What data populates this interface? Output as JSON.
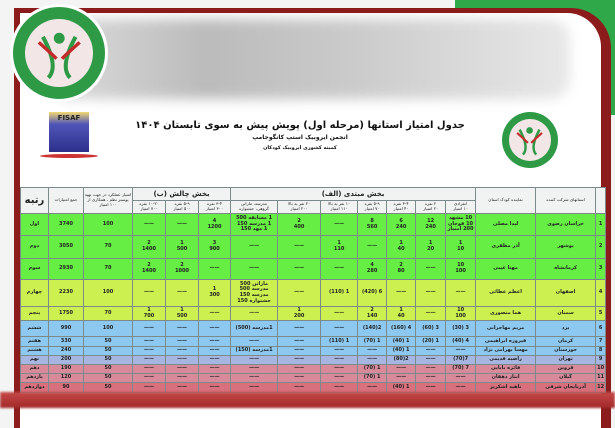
{
  "header": {
    "title": "جدول امتیاز استانها (مرحله اول) پویش پیش به سوی تابستان ۱۴۰۴",
    "subtitle": "انجمن ایروبیک استپ کانگوجامپ",
    "committee": "کمیته کشوری ایروبیک کودکان",
    "fisaf_logo_text": "FISAF"
  },
  "colors": {
    "frame": "#8c1c1c",
    "corner_green": "#2fa84a",
    "row_green": "#66ee44",
    "row_yellow": "#ccf050",
    "row_blue": "#8cc8f0",
    "row_pink": "#d88a9a"
  },
  "table": {
    "col_province": "استانهای شرکت کننده",
    "col_rep": "نماینده کودک استان",
    "group_a": "بخش مبتدی (الف)",
    "group_b": "بخش چالش (ب)",
    "col_a": [
      "انفرادی\n۱۰ امتیاز",
      "۲ نفره\n۲۰ امتیاز",
      "۳-۴ نفره\n۴۰ امتیاز",
      "۵-۹ نفره\n۷۰ امتیاز",
      "۱۰ نفر به بالا\n۱۱۰ امتیاز",
      "۲۰ نفر به بالا\n۲۰۰ امتیاز",
      "مدرسه، ماراتن\nگروهی، جشنواره"
    ],
    "col_b": [
      "۳-۴ نفره\n۳۰۰ امتیاز",
      "۵-۹ نفره\n۵۰۰ امتیاز",
      "۱۰-۲۰ نفره\n۷۰۰ امتیاز"
    ],
    "col_perf": "امتیاز عملکرد در جهت تهیه پوستر نظم ، همکاری از ۱۰۰ امتیاز",
    "col_total": "جمع امتیازات",
    "col_rank": "رتبه",
    "rows": [
      {
        "n": "1",
        "prov": "خراسان رضوی",
        "rep": "لیدا مصلی",
        "a": [
          "10 مشهد\n10 قوچان\n200 امتیاز",
          "12\n240",
          "6\n240",
          "8\n560",
          "——",
          "2\n400",
          "1 مسابقه  500\n1 مدرسه  150\n1 مهد  150"
        ],
        "b": [
          "4\n1200",
          "——",
          "——"
        ],
        "perf": "100",
        "total": "3740",
        "rank": "اول",
        "color": "green"
      },
      {
        "n": "2",
        "prov": "بوشهر",
        "rep": "آذر مظفری",
        "a": [
          "1\n10",
          "1\n20",
          "1\n40",
          "——",
          "1\n110",
          "——",
          "——"
        ],
        "b": [
          "3\n900",
          "1\n500",
          "2\n1400"
        ],
        "perf": "70",
        "total": "3050",
        "rank": "دوم",
        "color": "green"
      },
      {
        "n": "3",
        "prov": "کرمانشاه",
        "rep": "مهتا غیبی",
        "a": [
          "10\n100",
          "——",
          "2\n80",
          "4\n280",
          "——",
          "——",
          "——"
        ],
        "b": [
          "——",
          "2\n1000",
          "2\n1400"
        ],
        "perf": "70",
        "total": "2930",
        "rank": "سوم",
        "color": "green"
      },
      {
        "n": "4",
        "prov": "اصفهان",
        "rep": "اعظم عطائی",
        "a": [
          "——",
          "——",
          "——",
          "6 (420)",
          "1 (110)",
          "——",
          "ماراتن  500\nمدرسه  500\nمدرسه  150\nجشنواره  150"
        ],
        "b": [
          "1\n300",
          "——",
          "——"
        ],
        "perf": "100",
        "total": "2230",
        "rank": "چهارم",
        "color": "yellow"
      },
      {
        "n": "5",
        "prov": "سمنان",
        "rep": "هما منصوری",
        "a": [
          "10\n100",
          "——",
          "1\n40",
          "2\n140",
          "——",
          "1\n200",
          "——"
        ],
        "b": [
          "——",
          "1\n500",
          "1\n700"
        ],
        "perf": "70",
        "total": "1750",
        "rank": "پنجم",
        "color": "yellow"
      },
      {
        "n": "6",
        "prov": "یزد",
        "rep": "مریم مهاجرانی",
        "a": [
          "3 (30)",
          "3 (60)",
          "4 (160)",
          "2(140)",
          "——",
          "——",
          "1مدرسه (500)"
        ],
        "b": [
          "——",
          "——",
          "——"
        ],
        "perf": "100",
        "total": "990",
        "rank": "ششم",
        "color": "blue"
      },
      {
        "n": "7",
        "prov": "کرمان",
        "rep": "فیروزه ابراهیمی",
        "a": [
          "4 (40)",
          "1 (20)",
          "1 (40)",
          "1 (70)",
          "1 (110)",
          "——",
          "——"
        ],
        "b": [
          "——",
          "——",
          "——"
        ],
        "perf": "50",
        "total": "330",
        "rank": "هفتم",
        "color": "blue"
      },
      {
        "n": "8",
        "prov": "خوزستان",
        "rep": "مهسا بهرامی نژاد",
        "a": [
          "——",
          "——",
          "1 (40)",
          "——",
          "——",
          "——",
          "1مدرسه (150)"
        ],
        "b": [
          "——",
          "——",
          "——"
        ],
        "perf": "50",
        "total": "240",
        "rank": "هشتم",
        "color": "blue"
      },
      {
        "n": "9",
        "prov": "تهران",
        "rep": "راضیه قدیمی",
        "a": [
          "7(70)",
          "——",
          "2(80)",
          "——",
          "——",
          "——",
          "——"
        ],
        "b": [
          "——",
          "——",
          "——"
        ],
        "perf": "50",
        "total": "200",
        "rank": "نهم",
        "color": "blue"
      },
      {
        "n": "10",
        "prov": "قزوین",
        "rep": "فائزه بابایی",
        "a": [
          "7 (70)",
          "——",
          "——",
          "1 (70)",
          "——",
          "——",
          "——"
        ],
        "b": [
          "——",
          "——",
          "——"
        ],
        "perf": "50",
        "total": "190",
        "rank": "دهم",
        "color": "pink"
      },
      {
        "n": "11",
        "prov": "گیلان",
        "rep": "ابتاز دهقان",
        "a": [
          "——",
          "——",
          "——",
          "1 (70)",
          "——",
          "——",
          "——"
        ],
        "b": [
          "——",
          "——",
          "——"
        ],
        "perf": "50",
        "total": "120",
        "rank": "یازدهم",
        "color": "pink"
      },
      {
        "n": "12",
        "prov": "آذربایجان شرقی",
        "rep": "ناهید اشکریز",
        "a": [
          "——",
          "——",
          "1 (40)",
          "——",
          "——",
          "——",
          "——"
        ],
        "b": [
          "——",
          "——",
          "——"
        ],
        "perf": "50",
        "total": "90",
        "rank": "دوازدهم",
        "color": "pink"
      }
    ]
  }
}
